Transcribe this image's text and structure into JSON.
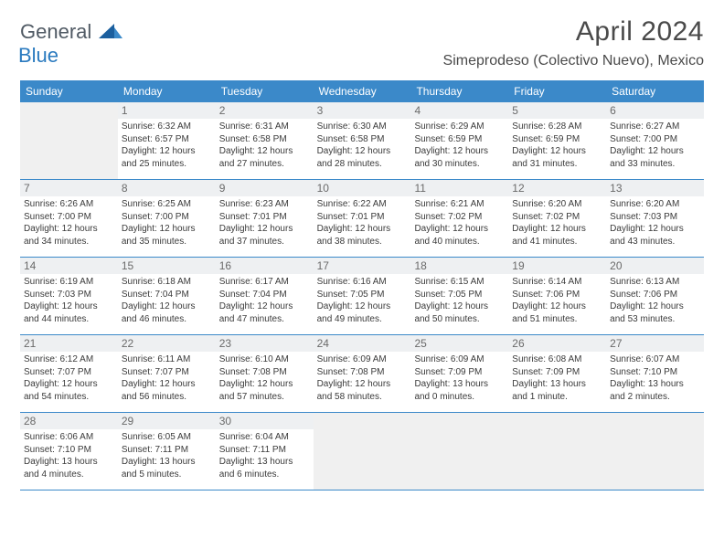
{
  "logo": {
    "general": "General",
    "blue": "Blue"
  },
  "title": "April 2024",
  "location": "Simeprodeso (Colectivo Nuevo), Mexico",
  "colors": {
    "header_bg": "#3b89c9",
    "header_text": "#ffffff",
    "daynum_bg": "#eef0f2",
    "empty_bg": "#f0f0f0",
    "border": "#3b89c9",
    "logo_blue": "#2a7abf",
    "logo_gray": "#505a64"
  },
  "day_names": [
    "Sunday",
    "Monday",
    "Tuesday",
    "Wednesday",
    "Thursday",
    "Friday",
    "Saturday"
  ],
  "weeks": [
    [
      {
        "empty": true
      },
      {
        "num": "1",
        "sunrise": "Sunrise: 6:32 AM",
        "sunset": "Sunset: 6:57 PM",
        "daylight1": "Daylight: 12 hours",
        "daylight2": "and 25 minutes."
      },
      {
        "num": "2",
        "sunrise": "Sunrise: 6:31 AM",
        "sunset": "Sunset: 6:58 PM",
        "daylight1": "Daylight: 12 hours",
        "daylight2": "and 27 minutes."
      },
      {
        "num": "3",
        "sunrise": "Sunrise: 6:30 AM",
        "sunset": "Sunset: 6:58 PM",
        "daylight1": "Daylight: 12 hours",
        "daylight2": "and 28 minutes."
      },
      {
        "num": "4",
        "sunrise": "Sunrise: 6:29 AM",
        "sunset": "Sunset: 6:59 PM",
        "daylight1": "Daylight: 12 hours",
        "daylight2": "and 30 minutes."
      },
      {
        "num": "5",
        "sunrise": "Sunrise: 6:28 AM",
        "sunset": "Sunset: 6:59 PM",
        "daylight1": "Daylight: 12 hours",
        "daylight2": "and 31 minutes."
      },
      {
        "num": "6",
        "sunrise": "Sunrise: 6:27 AM",
        "sunset": "Sunset: 7:00 PM",
        "daylight1": "Daylight: 12 hours",
        "daylight2": "and 33 minutes."
      }
    ],
    [
      {
        "num": "7",
        "sunrise": "Sunrise: 6:26 AM",
        "sunset": "Sunset: 7:00 PM",
        "daylight1": "Daylight: 12 hours",
        "daylight2": "and 34 minutes."
      },
      {
        "num": "8",
        "sunrise": "Sunrise: 6:25 AM",
        "sunset": "Sunset: 7:00 PM",
        "daylight1": "Daylight: 12 hours",
        "daylight2": "and 35 minutes."
      },
      {
        "num": "9",
        "sunrise": "Sunrise: 6:23 AM",
        "sunset": "Sunset: 7:01 PM",
        "daylight1": "Daylight: 12 hours",
        "daylight2": "and 37 minutes."
      },
      {
        "num": "10",
        "sunrise": "Sunrise: 6:22 AM",
        "sunset": "Sunset: 7:01 PM",
        "daylight1": "Daylight: 12 hours",
        "daylight2": "and 38 minutes."
      },
      {
        "num": "11",
        "sunrise": "Sunrise: 6:21 AM",
        "sunset": "Sunset: 7:02 PM",
        "daylight1": "Daylight: 12 hours",
        "daylight2": "and 40 minutes."
      },
      {
        "num": "12",
        "sunrise": "Sunrise: 6:20 AM",
        "sunset": "Sunset: 7:02 PM",
        "daylight1": "Daylight: 12 hours",
        "daylight2": "and 41 minutes."
      },
      {
        "num": "13",
        "sunrise": "Sunrise: 6:20 AM",
        "sunset": "Sunset: 7:03 PM",
        "daylight1": "Daylight: 12 hours",
        "daylight2": "and 43 minutes."
      }
    ],
    [
      {
        "num": "14",
        "sunrise": "Sunrise: 6:19 AM",
        "sunset": "Sunset: 7:03 PM",
        "daylight1": "Daylight: 12 hours",
        "daylight2": "and 44 minutes."
      },
      {
        "num": "15",
        "sunrise": "Sunrise: 6:18 AM",
        "sunset": "Sunset: 7:04 PM",
        "daylight1": "Daylight: 12 hours",
        "daylight2": "and 46 minutes."
      },
      {
        "num": "16",
        "sunrise": "Sunrise: 6:17 AM",
        "sunset": "Sunset: 7:04 PM",
        "daylight1": "Daylight: 12 hours",
        "daylight2": "and 47 minutes."
      },
      {
        "num": "17",
        "sunrise": "Sunrise: 6:16 AM",
        "sunset": "Sunset: 7:05 PM",
        "daylight1": "Daylight: 12 hours",
        "daylight2": "and 49 minutes."
      },
      {
        "num": "18",
        "sunrise": "Sunrise: 6:15 AM",
        "sunset": "Sunset: 7:05 PM",
        "daylight1": "Daylight: 12 hours",
        "daylight2": "and 50 minutes."
      },
      {
        "num": "19",
        "sunrise": "Sunrise: 6:14 AM",
        "sunset": "Sunset: 7:06 PM",
        "daylight1": "Daylight: 12 hours",
        "daylight2": "and 51 minutes."
      },
      {
        "num": "20",
        "sunrise": "Sunrise: 6:13 AM",
        "sunset": "Sunset: 7:06 PM",
        "daylight1": "Daylight: 12 hours",
        "daylight2": "and 53 minutes."
      }
    ],
    [
      {
        "num": "21",
        "sunrise": "Sunrise: 6:12 AM",
        "sunset": "Sunset: 7:07 PM",
        "daylight1": "Daylight: 12 hours",
        "daylight2": "and 54 minutes."
      },
      {
        "num": "22",
        "sunrise": "Sunrise: 6:11 AM",
        "sunset": "Sunset: 7:07 PM",
        "daylight1": "Daylight: 12 hours",
        "daylight2": "and 56 minutes."
      },
      {
        "num": "23",
        "sunrise": "Sunrise: 6:10 AM",
        "sunset": "Sunset: 7:08 PM",
        "daylight1": "Daylight: 12 hours",
        "daylight2": "and 57 minutes."
      },
      {
        "num": "24",
        "sunrise": "Sunrise: 6:09 AM",
        "sunset": "Sunset: 7:08 PM",
        "daylight1": "Daylight: 12 hours",
        "daylight2": "and 58 minutes."
      },
      {
        "num": "25",
        "sunrise": "Sunrise: 6:09 AM",
        "sunset": "Sunset: 7:09 PM",
        "daylight1": "Daylight: 13 hours",
        "daylight2": "and 0 minutes."
      },
      {
        "num": "26",
        "sunrise": "Sunrise: 6:08 AM",
        "sunset": "Sunset: 7:09 PM",
        "daylight1": "Daylight: 13 hours",
        "daylight2": "and 1 minute."
      },
      {
        "num": "27",
        "sunrise": "Sunrise: 6:07 AM",
        "sunset": "Sunset: 7:10 PM",
        "daylight1": "Daylight: 13 hours",
        "daylight2": "and 2 minutes."
      }
    ],
    [
      {
        "num": "28",
        "sunrise": "Sunrise: 6:06 AM",
        "sunset": "Sunset: 7:10 PM",
        "daylight1": "Daylight: 13 hours",
        "daylight2": "and 4 minutes."
      },
      {
        "num": "29",
        "sunrise": "Sunrise: 6:05 AM",
        "sunset": "Sunset: 7:11 PM",
        "daylight1": "Daylight: 13 hours",
        "daylight2": "and 5 minutes."
      },
      {
        "num": "30",
        "sunrise": "Sunrise: 6:04 AM",
        "sunset": "Sunset: 7:11 PM",
        "daylight1": "Daylight: 13 hours",
        "daylight2": "and 6 minutes."
      },
      {
        "empty": true
      },
      {
        "empty": true
      },
      {
        "empty": true
      },
      {
        "empty": true
      }
    ]
  ]
}
